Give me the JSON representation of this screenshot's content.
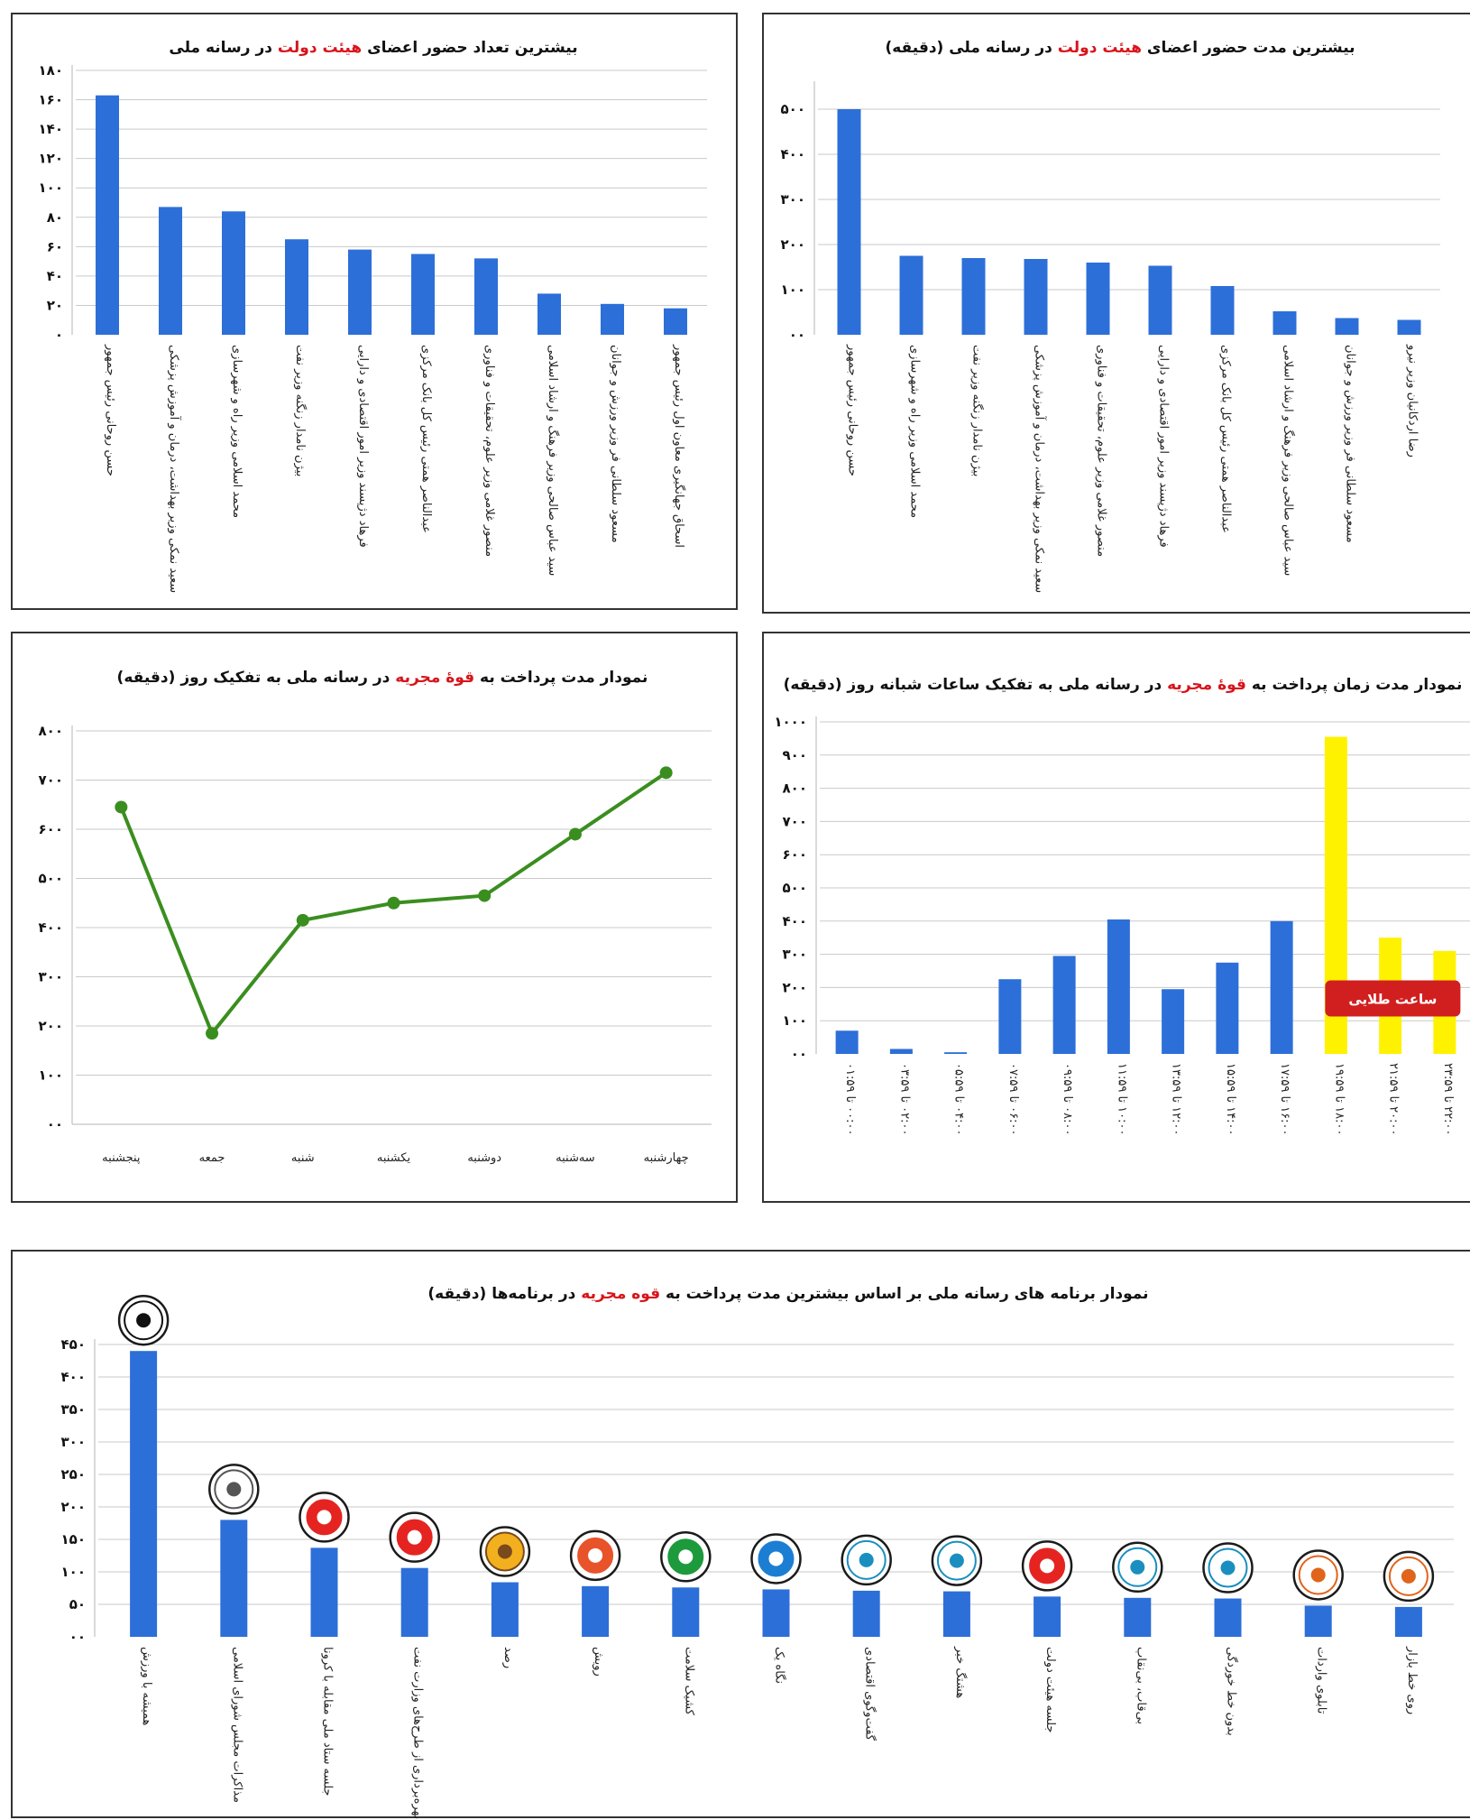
{
  "chart_data": [
    {
      "id": "c1",
      "type": "bar",
      "title_pre": "بیشترین تعداد حضور اعضای ",
      "title_hl": "هیئت دولت",
      "title_post": " در رسانه ملی",
      "ylim": [
        0,
        180
      ],
      "ticks": [
        0,
        20,
        40,
        60,
        80,
        100,
        120,
        140,
        160,
        180
      ],
      "tick_labels": [
        "۰",
        "۲۰",
        "۴۰",
        "۶۰",
        "۸۰",
        "۱۰۰",
        "۱۲۰",
        "۱۴۰",
        "۱۶۰",
        "۱۸۰"
      ],
      "categories": [
        "حسن روحانی رئیس جمهور",
        "سعید نمکی وزیر بهداشت، درمان و آموزش پزشکی",
        "محمد اسلامی وزیر راه و شهرسازی",
        "بیژن نامدار زنگنه وزیر نفت",
        "فرهاد دژپسند وزیر امور اقتصادی و دارایی",
        "عبدالناصر همتی رئیس کل بانک مرکزی",
        "منصور غلامی وزیر علوم، تحقیقات و فناوری",
        "سید عباس صالحی وزیر فرهنگ و ارشاد اسلامی",
        "مسعود سلطانی فر وزیر ورزش و جوانان",
        "اسحاق جهانگیری معاون اول رئیس جمهور"
      ],
      "values": [
        163,
        87,
        84,
        65,
        58,
        55,
        52,
        28,
        21,
        18
      ]
    },
    {
      "id": "c2",
      "type": "bar",
      "title_pre": "بیشترین مدت حضور اعضای ",
      "title_hl": "هیئت دولت",
      "title_post": " در رسانه ملی (دقیقه)",
      "ylim": [
        0,
        550
      ],
      "ticks": [
        0,
        100,
        200,
        300,
        400,
        500
      ],
      "tick_labels": [
        "۰۰",
        "۱۰۰",
        "۲۰۰",
        "۳۰۰",
        "۴۰۰",
        "۵۰۰"
      ],
      "categories": [
        "حسن روحانی رئیس جمهور",
        "محمد اسلامی وزیر راه و شهرسازی",
        "بیژن نامدار زنگنه وزیر نفت",
        "سعید نمکی وزیر بهداشت، درمان و آموزش پزشکی",
        "منصور غلامی وزیر علوم، تحقیقات و فناوری",
        "فرهاد دژپسند وزیر امور اقتصادی و دارایی",
        "عبدالناصر همتی رئیس کل بانک مرکزی",
        "سید عباس صالحی وزیر فرهنگ و ارشاد اسلامی",
        "مسعود سلطانی فر وزیر ورزش و جوانان",
        "رضا اردکانیان وزیر نیرو"
      ],
      "values": [
        500,
        175,
        170,
        168,
        160,
        153,
        108,
        52,
        37,
        33
      ]
    },
    {
      "id": "c3",
      "type": "line",
      "title_pre": "نمودار مدت پرداخت به ",
      "title_hl": "قوهٔ مجریه",
      "title_post": " در رسانه ملی به تفکیک روز (دقیقه)",
      "ylim": [
        0,
        800
      ],
      "ticks": [
        0,
        100,
        200,
        300,
        400,
        500,
        600,
        700,
        800
      ],
      "tick_labels": [
        "۰۰",
        "۱۰۰",
        "۲۰۰",
        "۳۰۰",
        "۴۰۰",
        "۵۰۰",
        "۶۰۰",
        "۷۰۰",
        "۸۰۰"
      ],
      "categories": [
        "پنجشنبه",
        "جمعه",
        "شنبه",
        "یکشنبه",
        "دوشنبه",
        "سه‌شنبه",
        "چهارشنبه"
      ],
      "values": [
        645,
        185,
        415,
        450,
        465,
        590,
        715
      ],
      "color": "#3a8e1f"
    },
    {
      "id": "c4",
      "type": "bar",
      "title_pre": "نمودار مدت زمان پرداخت به ",
      "title_hl": "قوهٔ مجریه",
      "title_post": " در رسانه ملی به تفکیک ساعات شبانه روز (دقیقه)",
      "ylim": [
        0,
        1000
      ],
      "ticks": [
        0,
        100,
        200,
        300,
        400,
        500,
        600,
        700,
        800,
        900,
        1000
      ],
      "tick_labels": [
        "۰۰",
        "۱۰۰",
        "۲۰۰",
        "۳۰۰",
        "۴۰۰",
        "۵۰۰",
        "۶۰۰",
        "۷۰۰",
        "۸۰۰",
        "۹۰۰",
        "۱۰۰۰"
      ],
      "categories": [
        "۰۰:۰۰ تا ۰۱:۵۹",
        "۰۲:۰۰ تا ۰۳:۵۹",
        "۰۴:۰۰ تا ۰۵:۵۹",
        "۰۶:۰۰ تا ۰۷:۵۹",
        "۰۸:۰۰ تا ۰۹:۵۹",
        "۱۰:۰۰ تا ۱۱:۵۹",
        "۱۲:۰۰ تا ۱۳:۵۹",
        "۱۴:۰۰ تا ۱۵:۵۹",
        "۱۶:۰۰ تا ۱۷:۵۹",
        "۱۸:۰۰ تا ۱۹:۵۹",
        "۲۰:۰۰ تا ۲۱:۵۹",
        "۲۲:۰۰ تا ۲۳:۵۹"
      ],
      "values": [
        70,
        15,
        5,
        225,
        295,
        405,
        195,
        275,
        400,
        955,
        350,
        310
      ],
      "highlight": [
        9,
        10,
        11
      ],
      "badge": "ساعت طلایی"
    },
    {
      "id": "c5",
      "type": "bar",
      "title_pre": "نمودار برنامه های رسانه ملی بر اساس بیشترین مدت پرداخت به ",
      "title_hl": "قوه مجریه",
      "title_post": " در برنامه‌ها (دقیقه)",
      "ylim": [
        0,
        450
      ],
      "ticks": [
        0,
        50,
        100,
        150,
        200,
        250,
        300,
        350,
        400,
        450
      ],
      "tick_labels": [
        "۰۰",
        "۵۰",
        "۱۰۰",
        "۱۵۰",
        "۲۰۰",
        "۲۵۰",
        "۳۰۰",
        "۳۵۰",
        "۴۰۰",
        "۴۵۰"
      ],
      "categories": [
        "همیشه با ورزش",
        "مذاکرات مجلس شورای اسلامی",
        "جلسه ستاد ملی مقابله با کرونا",
        "آیین بهره‌برداری از طرح‌های وزارت نفت",
        "رصد",
        "رویش",
        "کشیک سلامت",
        "نگاه یک",
        "گفت‌وگوی اقتصادی",
        "هشتگ خبر",
        "جلسه هیئت دولت",
        "بی‌قاب، بی‌نقاب",
        "بدون خط خوردگی",
        "تابلوی واردات",
        "روی خط بازار"
      ],
      "values": [
        440,
        180,
        137,
        106,
        84,
        78,
        76,
        73,
        71,
        70,
        62,
        60,
        59,
        48,
        46
      ],
      "icons": [
        "varzesh-channel-icon",
        "radio-goftogu-icon",
        "channel-1-icon",
        "channel-1-icon",
        "channel-3-icon",
        "channel-2-icon",
        "salamat-channel-icon",
        "khabar-channel-icon",
        "eghtesad-radio-icon",
        "eghtesad-radio-icon",
        "channel-1-icon",
        "eghtesad-radio-icon",
        "eghtesad-radio-icon",
        "radio-iran-icon",
        "radio-iran-icon"
      ]
    }
  ]
}
